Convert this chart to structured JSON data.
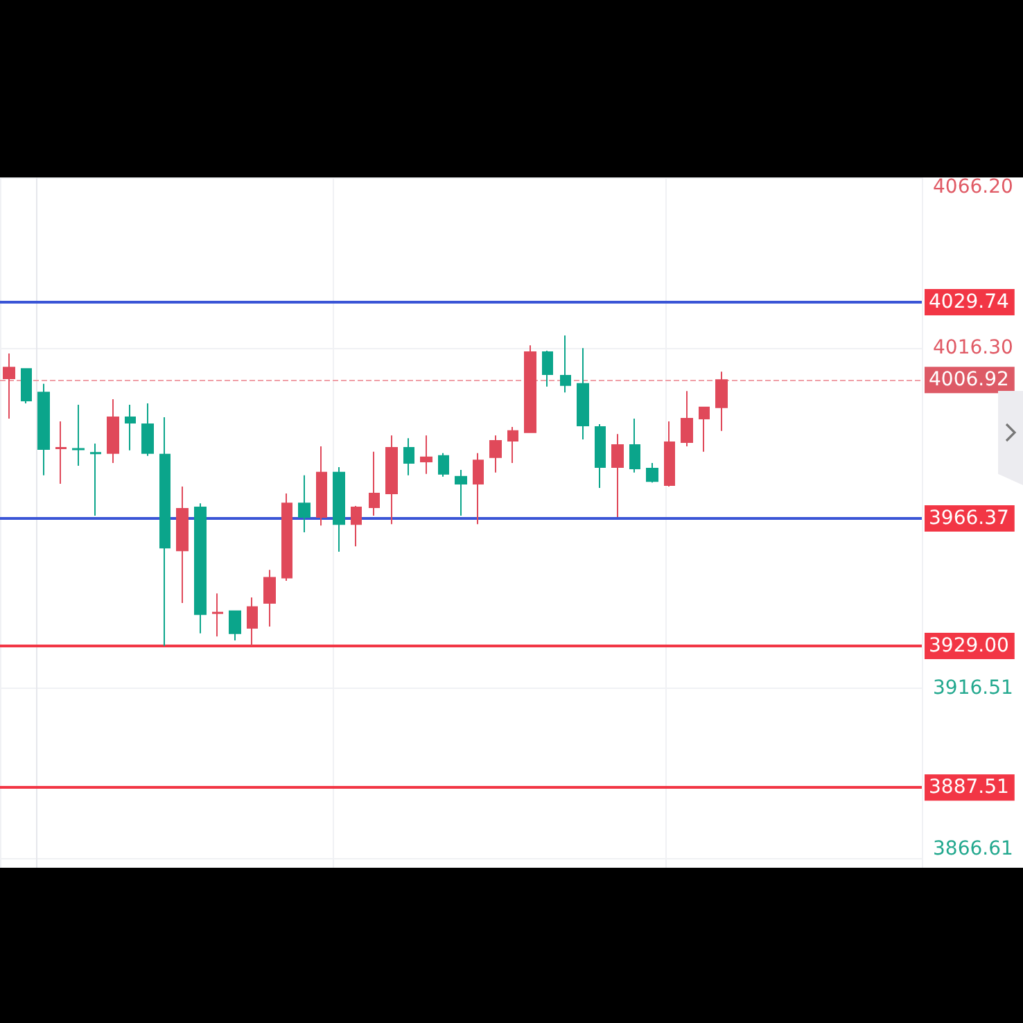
{
  "chart_data": {
    "type": "candlestick",
    "categories": [
      null,
      null,
      null,
      null,
      null,
      null,
      null,
      null,
      null,
      null,
      null,
      null,
      null,
      null,
      null,
      null,
      null,
      null,
      null,
      null,
      null,
      null,
      null,
      null,
      null,
      null,
      null,
      null,
      null,
      null,
      null,
      null,
      null,
      null,
      null,
      null,
      null,
      null,
      null,
      null,
      null,
      null,
      null,
      null,
      null,
      null,
      null,
      null,
      null,
      null,
      null,
      null,
      null
    ],
    "ohlc": [
      [
        4007.4,
        4014.7,
        3995.6,
        4010.6
      ],
      [
        4010.2,
        4010.2,
        4000.1,
        4000.9
      ],
      [
        4003.3,
        4005.8,
        3979.0,
        3986.7
      ],
      [
        3986.9,
        3994.8,
        3976.5,
        3987.1
      ],
      [
        3986.8,
        3999.7,
        3981.8,
        3986.6
      ],
      [
        3985.6,
        3988.3,
        3967.2,
        3985.4
      ],
      [
        3985.5,
        4001.3,
        3982.6,
        3996.0
      ],
      [
        3996.0,
        3999.7,
        3986.3,
        3994.4
      ],
      [
        3994.0,
        4000.1,
        3984.7,
        3985.5
      ],
      [
        3985.1,
        3996.0,
        3929.0,
        3957.8
      ],
      [
        3957.0,
        3975.7,
        3941.6,
        3969.2
      ],
      [
        3969.6,
        3970.8,
        3932.7,
        3938.3
      ],
      [
        3938.6,
        3944.4,
        3931.8,
        3938.8
      ],
      [
        3939.2,
        3939.2,
        3930.6,
        3932.7
      ],
      [
        3934.3,
        3943.2,
        3929.0,
        3940.4
      ],
      [
        3941.6,
        3951.3,
        3934.7,
        3949.0
      ],
      [
        3949.0,
        3973.7,
        3948.1,
        3970.8
      ],
      [
        3970.8,
        3979.0,
        3962.3,
        3966.8
      ],
      [
        3966.8,
        3987.5,
        3964.3,
        3979.8
      ],
      [
        3979.8,
        3981.4,
        3956.6,
        3964.7
      ],
      [
        3964.7,
        3970.0,
        3958.2,
        3969.6
      ],
      [
        3969.6,
        3985.9,
        3967.2,
        3973.7
      ],
      [
        3973.7,
        3990.7,
        3964.7,
        3987.1
      ],
      [
        3987.1,
        3989.9,
        3979.0,
        3982.6
      ],
      [
        3983.0,
        3990.7,
        3979.4,
        3984.3
      ],
      [
        3984.7,
        3985.5,
        3978.6,
        3979.4
      ],
      [
        3978.6,
        3980.6,
        3967.2,
        3976.5
      ],
      [
        3976.5,
        3985.5,
        3964.7,
        3983.4
      ],
      [
        3984.3,
        3990.7,
        3979.8,
        3989.1
      ],
      [
        3989.1,
        3993.2,
        3982.6,
        3992.0
      ],
      [
        3991.6,
        4017.1,
        3991.6,
        4015.1
      ],
      [
        4015.1,
        4015.5,
        4005.0,
        4008.6
      ],
      [
        4008.2,
        4020.0,
        4003.3,
        4005.4
      ],
      [
        4005.8,
        4016.3,
        3989.5,
        3993.6
      ],
      [
        3993.2,
        3994.0,
        3975.3,
        3981.4
      ],
      [
        3981.4,
        3991.1,
        3966.8,
        3987.9
      ],
      [
        3987.9,
        3995.6,
        3979.8,
        3981.0
      ],
      [
        3981.0,
        3982.6,
        3976.9,
        3977.3
      ],
      [
        3976.1,
        3994.8,
        3975.7,
        3988.7
      ],
      [
        3988.7,
        4003.7,
        3987.5,
        3995.6
      ],
      [
        3995.6,
        3998.9,
        3985.9,
        3998.9
      ],
      [
        3998.9,
        4009.4,
        3992.0,
        4006.92
      ],
      null,
      null,
      null,
      null,
      null,
      null,
      null,
      null,
      null,
      null,
      null
    ],
    "colors": [
      "#e0495a",
      "#0ba58b",
      "#0ba58b",
      "#e0495a",
      "#0ba58b",
      "#0ba58b",
      "#e0495a",
      "#0ba58b",
      "#0ba58b",
      "#0ba58b",
      "#e0495a",
      "#0ba58b",
      "#e0495a",
      "#0ba58b",
      "#e0495a",
      "#e0495a",
      "#e0495a",
      "#0ba58b",
      "#e0495a",
      "#0ba58b",
      "#e0495a",
      "#e0495a",
      "#e0495a",
      "#0ba58b",
      "#e0495a",
      "#0ba58b",
      "#0ba58b",
      "#e0495a",
      "#e0495a",
      "#e0495a",
      "#e0495a",
      "#0ba58b",
      "#0ba58b",
      "#0ba58b",
      "#0ba58b",
      "#e0495a",
      "#0ba58b",
      "#0ba58b",
      "#e0495a",
      "#e0495a",
      "#e0495a",
      "#e0495a",
      null,
      null,
      null,
      null,
      null,
      null,
      null,
      null,
      null,
      null,
      null
    ],
    "ylim": [
      3864.0,
      4066.3
    ],
    "yticks": [
      3866.61,
      3916.51,
      {
        "value": 4016.3,
        "label": "4016.30"
      },
      {
        "value": 4066.2,
        "label": "4066.20"
      }
    ],
    "grid": true,
    "ref_lines": [
      {
        "axis": "y",
        "value": 4029.74,
        "label": "4029.74",
        "color": "#3a55d6"
      },
      {
        "axis": "y",
        "value": 4006.92,
        "label": "4006.92",
        "color": "#f0a0a8",
        "line_style": "dashed"
      },
      {
        "axis": "y",
        "value": 3966.37,
        "label": "3966.37",
        "color": "#3a55d6"
      },
      {
        "axis": "y",
        "value": 3929.0,
        "label": "3929.00",
        "color": "#f23645"
      },
      {
        "axis": "y",
        "value": 3887.51,
        "label": "3887.51",
        "color": "#f23645"
      }
    ]
  }
}
